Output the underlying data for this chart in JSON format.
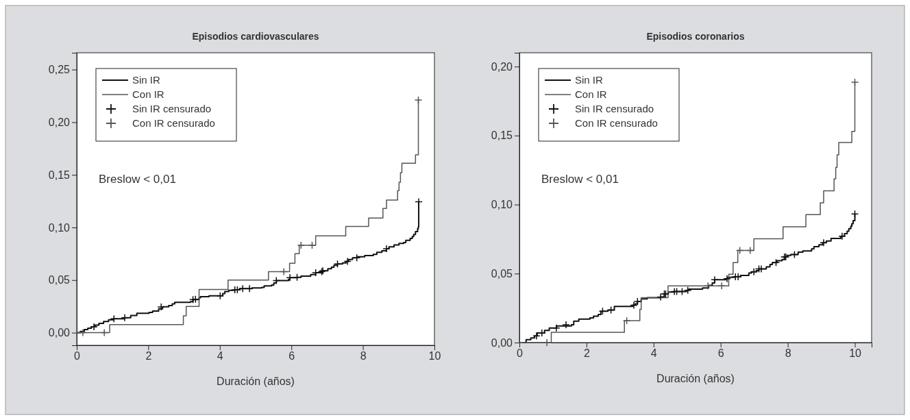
{
  "chart_data": [
    {
      "type": "step",
      "title": "Episodios cardiovasculares",
      "xlabel": "Duración (años)",
      "xlim": [
        0,
        10
      ],
      "ylim": [
        -0.012,
        0.266
      ],
      "xticks": [
        0,
        2,
        4,
        6,
        8,
        10
      ],
      "yticks": [
        {
          "value": 0,
          "label": "0,00"
        },
        {
          "value": 0.05,
          "label": "0,05"
        },
        {
          "value": 0.1,
          "label": "0,10"
        },
        {
          "value": 0.15,
          "label": "0,15"
        },
        {
          "value": 0.2,
          "label": "0,20"
        },
        {
          "value": 0.25,
          "label": "0,25"
        }
      ],
      "grid": false,
      "legend": "top left",
      "line_style": "solid",
      "annotations": [
        "Breslow < 0,01"
      ],
      "series": [
        {
          "name": "Sin IR",
          "type": "step",
          "color": "#111111",
          "x": [
            0,
            0.1,
            0.21,
            0.31,
            0.41,
            0.51,
            0.62,
            0.75,
            0.89,
            1.03,
            1.34,
            1.51,
            1.68,
            2.02,
            2.12,
            2.29,
            2.4,
            2.57,
            2.67,
            2.74,
            3.18,
            3.25,
            3.42,
            3.46,
            3.7,
            4.08,
            4.14,
            4.25,
            4.42,
            4.55,
            4.9,
            5.17,
            5.24,
            5.45,
            5.51,
            5.58,
            5.92,
            5.96,
            6.16,
            6.27,
            6.54,
            6.68,
            6.88,
            7.02,
            7.12,
            7.19,
            7.29,
            7.43,
            7.53,
            7.6,
            7.71,
            7.84,
            8.05,
            8.29,
            8.39,
            8.53,
            8.66,
            8.73,
            8.87,
            9.01,
            9.14,
            9.2,
            9.32,
            9.38,
            9.42,
            9.47,
            9.53,
            9.55,
            9.56
          ],
          "values": [
            0,
            0.0012,
            0.003,
            0.0042,
            0.0056,
            0.0072,
            0.0088,
            0.0107,
            0.0123,
            0.0133,
            0.0142,
            0.0163,
            0.0184,
            0.0193,
            0.0205,
            0.0226,
            0.0247,
            0.0258,
            0.0274,
            0.0288,
            0.0295,
            0.0314,
            0.0333,
            0.0342,
            0.0351,
            0.0372,
            0.0391,
            0.0402,
            0.0407,
            0.0419,
            0.0426,
            0.043,
            0.0444,
            0.0453,
            0.0472,
            0.0495,
            0.0507,
            0.0523,
            0.0526,
            0.0537,
            0.0553,
            0.057,
            0.0588,
            0.0607,
            0.0623,
            0.064,
            0.0653,
            0.0663,
            0.0677,
            0.0695,
            0.0712,
            0.0721,
            0.0733,
            0.0744,
            0.0763,
            0.0779,
            0.0798,
            0.0816,
            0.0833,
            0.0849,
            0.0856,
            0.0877,
            0.0895,
            0.0914,
            0.0933,
            0.096,
            0.0988,
            0.1007,
            0.1244
          ]
        },
        {
          "name": "Con IR",
          "type": "step",
          "color": "#555555",
          "x": [
            0,
            0.92,
            2.98,
            3.06,
            3.42,
            4.23,
            5.36,
            5.95,
            6.1,
            6.22,
            6.68,
            7.52,
            8.16,
            8.56,
            8.66,
            8.97,
            9.01,
            9.05,
            9.09,
            9.47,
            9.55
          ],
          "values": [
            0,
            0.0077,
            0.016,
            0.025,
            0.041,
            0.05,
            0.058,
            0.066,
            0.075,
            0.083,
            0.092,
            0.101,
            0.109,
            0.118,
            0.126,
            0.135,
            0.143,
            0.152,
            0.161,
            0.169,
            0.221
          ]
        },
        {
          "name": "Sin IR censurado",
          "type": "scatter",
          "marker": "cross",
          "color": "#111111",
          "x": [
            0.48,
            1.04,
            1.34,
            2.36,
            3.25,
            3.32,
            4.01,
            4.42,
            4.49,
            4.64,
            4.83,
            5.58,
            5.96,
            6.16,
            6.68,
            6.85,
            6.88,
            7.29,
            7.57,
            7.83,
            8.66,
            9.56
          ],
          "values": [
            0.0056,
            0.0133,
            0.0142,
            0.0245,
            0.0314,
            0.0318,
            0.0351,
            0.0407,
            0.0407,
            0.0419,
            0.0419,
            0.0495,
            0.0523,
            0.0526,
            0.057,
            0.058,
            0.0588,
            0.0653,
            0.0677,
            0.0712,
            0.0798,
            0.1244
          ]
        },
        {
          "name": "Con IR censurado",
          "type": "scatter",
          "marker": "cross",
          "color": "#555555",
          "x": [
            0.17,
            0.77,
            5.79,
            6.27,
            6.58,
            9.55
          ],
          "values": [
            0,
            0,
            0.058,
            0.083,
            0.083,
            0.221
          ]
        }
      ]
    },
    {
      "type": "step",
      "title": "Episodios coronarios",
      "xlabel": "Duración (años)",
      "xlim": [
        0,
        10.5
      ],
      "ylim": [
        0,
        0.21
      ],
      "xticks": [
        0,
        2,
        4,
        6,
        8,
        10
      ],
      "yticks": [
        {
          "value": 0,
          "label": "0,00"
        },
        {
          "value": 0.05,
          "label": "0,05"
        },
        {
          "value": 0.1,
          "label": "0,10"
        },
        {
          "value": 0.15,
          "label": "0,15"
        },
        {
          "value": 0.2,
          "label": "0,20"
        }
      ],
      "grid": false,
      "legend": "top left",
      "line_style": "solid",
      "annotations": [
        "Breslow < 0,01"
      ],
      "series": [
        {
          "name": "Sin IR",
          "type": "step",
          "color": "#111111",
          "x": [
            0.12,
            0.2,
            0.34,
            0.45,
            0.53,
            0.75,
            0.89,
            1.11,
            1.55,
            1.62,
            1.77,
            2.1,
            2.21,
            2.35,
            2.43,
            2.64,
            2.83,
            3.37,
            3.45,
            3.52,
            3.63,
            3.81,
            4.21,
            4.32,
            4.43,
            4.62,
            4.98,
            5.05,
            5.46,
            5.64,
            5.75,
            5.82,
            6.15,
            6.22,
            6.41,
            6.59,
            6.84,
            6.92,
            7.06,
            7.14,
            7.36,
            7.47,
            7.54,
            7.68,
            7.83,
            7.9,
            7.98,
            8.09,
            8.31,
            8.45,
            8.71,
            8.78,
            8.93,
            9.04,
            9.15,
            9.29,
            9.58,
            9.69,
            9.77,
            9.82,
            9.88,
            9.91,
            9.95,
            10.0
          ],
          "values": [
            0,
            0.0021,
            0.0034,
            0.0048,
            0.007,
            0.0088,
            0.0105,
            0.012,
            0.0129,
            0.0155,
            0.017,
            0.0179,
            0.0191,
            0.0204,
            0.0227,
            0.0236,
            0.0262,
            0.0271,
            0.028,
            0.0298,
            0.0316,
            0.0325,
            0.033,
            0.0352,
            0.0366,
            0.037,
            0.0379,
            0.0387,
            0.0396,
            0.0414,
            0.0432,
            0.0455,
            0.0463,
            0.0473,
            0.0477,
            0.0486,
            0.0504,
            0.0513,
            0.0521,
            0.0534,
            0.0548,
            0.0566,
            0.0579,
            0.0593,
            0.0602,
            0.062,
            0.0632,
            0.0638,
            0.0655,
            0.0664,
            0.0679,
            0.0695,
            0.0709,
            0.0723,
            0.0736,
            0.0754,
            0.0771,
            0.0789,
            0.0807,
            0.0825,
            0.0843,
            0.0861,
            0.0884,
            0.0932
          ]
        },
        {
          "name": "Con IR",
          "type": "step",
          "color": "#555555",
          "x": [
            0,
            0.95,
            3.13,
            3.59,
            3.63,
            4.43,
            6.24,
            6.37,
            6.51,
            6.99,
            7.86,
            8.54,
            8.97,
            9.07,
            9.38,
            9.43,
            9.47,
            9.52,
            9.91,
            10.0
          ],
          "values": [
            0,
            0.0075,
            0.0159,
            0.0241,
            0.0325,
            0.0411,
            0.0495,
            0.058,
            0.0668,
            0.0752,
            0.0839,
            0.0927,
            0.1013,
            0.11,
            0.1186,
            0.127,
            0.136,
            0.145,
            0.153,
            0.1886
          ]
        },
        {
          "name": "Sin IR censurado",
          "type": "scatter",
          "marker": "cross",
          "color": "#111111",
          "x": [
            0.51,
            0.67,
            1.1,
            1.39,
            2.48,
            2.73,
            3.41,
            3.52,
            4.21,
            4.32,
            4.36,
            4.62,
            4.69,
            4.85,
            5.02,
            5.82,
            6.19,
            6.44,
            6.52,
            6.99,
            7.14,
            7.21,
            7.65,
            7.9,
            7.94,
            8.2,
            9.07,
            9.62,
            10.0
          ],
          "values": [
            0.0048,
            0.007,
            0.0105,
            0.0129,
            0.0227,
            0.0236,
            0.0271,
            0.0298,
            0.033,
            0.0352,
            0.0352,
            0.037,
            0.037,
            0.037,
            0.0379,
            0.0455,
            0.0463,
            0.0477,
            0.0477,
            0.0513,
            0.0534,
            0.0534,
            0.0579,
            0.062,
            0.062,
            0.0638,
            0.0723,
            0.0771,
            0.0932
          ]
        },
        {
          "name": "Con IR censurado",
          "type": "scatter",
          "marker": "cross",
          "color": "#555555",
          "x": [
            0.82,
            3.2,
            5.62,
            6.03,
            6.57,
            6.88,
            10.0
          ],
          "values": [
            0,
            0.0159,
            0.0411,
            0.0411,
            0.0668,
            0.0668,
            0.1886
          ]
        }
      ]
    }
  ]
}
